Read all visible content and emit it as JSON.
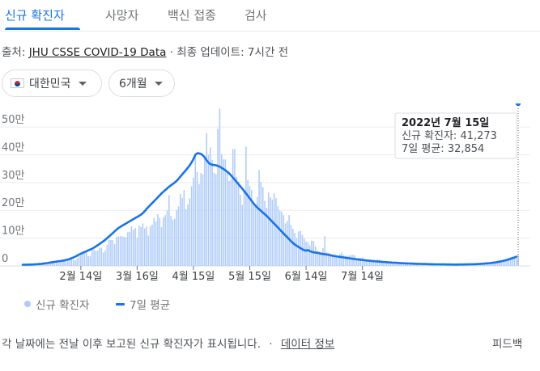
{
  "tabs": [
    {
      "label": "신규 확진자",
      "active": true
    },
    {
      "label": "사망자",
      "active": false
    },
    {
      "label": "백신 접종",
      "active": false
    },
    {
      "label": "검사",
      "active": false
    }
  ],
  "source": {
    "prefix": "출처:",
    "link": "JHU CSSE COVID-19 Data",
    "separator": "·",
    "updated": "최종 업데이트: 7시간 전"
  },
  "filters": {
    "country": "대한민국",
    "period": "6개월"
  },
  "colors": {
    "accent": "#1a73e8",
    "bar": "#aecbfa"
  },
  "chart_data": {
    "type": "bar",
    "title": "",
    "xlabel": "",
    "ylabel": "",
    "ylim": [
      0,
      570000
    ],
    "y_ticks": [
      0,
      100000,
      200000,
      300000,
      400000,
      500000
    ],
    "y_tick_labels": [
      "0",
      "10만",
      "20만",
      "30만",
      "40만",
      "50만"
    ],
    "x_start": "2022-01-14",
    "x_tick_labels": [
      "2월 14일",
      "3월 16일",
      "4월 15일",
      "5월 15일",
      "6월 14일",
      "7월 14일"
    ],
    "x_tick_dates": [
      "2022-02-14",
      "2022-03-16",
      "2022-04-15",
      "2022-05-15",
      "2022-06-14",
      "2022-07-14"
    ],
    "series": [
      {
        "name": "신규 확진자",
        "type": "bar",
        "values": [
          4500,
          4200,
          4600,
          4800,
          5000,
          4100,
          4300,
          5500,
          5900,
          6400,
          7500,
          8000,
          7000,
          6000,
          9000,
          11000,
          13000,
          14500,
          14000,
          11000,
          13500,
          17000,
          19000,
          20000,
          22000,
          27000,
          29000,
          22000,
          20000,
          27000,
          36000,
          38000,
          49000,
          53000,
          48000,
          35000,
          35500,
          57000,
          58000,
          54000,
          55000,
          66000,
          66000,
          48000,
          56000,
          76000,
          94000,
          93000,
          93000,
          78000,
          104000,
          106000,
          107000,
          107000,
          105000,
          103000,
          121000,
          123000,
          143000,
          130000,
          137000,
          102000,
          145000,
          140000,
          153000,
          135000,
          142000,
          109000,
          142000,
          149000,
          172000,
          160000,
          186000,
          173000,
          140000,
          175000,
          183000,
          200000,
          255000,
          180000,
          165000,
          170000,
          201000,
          214000,
          259000,
          245000,
          272000,
          203000,
          221000,
          243000,
          287000,
          318000,
          395000,
          337000,
          294000,
          334000,
          330000,
          387000,
          478000,
          400000,
          426000,
          381000,
          335000,
          330000,
          493000,
          566000,
          402000,
          384000,
          383000,
          337000,
          305000,
          312000,
          420000,
          421000,
          321000,
          304000,
          256000,
          220000,
          268000,
          429000,
          310000,
          287000,
          273000,
          223000,
          216000,
          248000,
          345000,
          302000,
          283000,
          234000,
          209000,
          264000,
          247000,
          239000,
          262000,
          244000,
          215000,
          199000,
          196000,
          183000,
          153000,
          162000,
          183000,
          148000,
          133000,
          119000,
          101000,
          124000,
          126000,
          111000,
          98000,
          88000,
          85000,
          74000,
          91000,
          90000,
          71000,
          55000,
          51000,
          50000,
          64000,
          107000,
          49000,
          47000,
          35000,
          38000,
          32000,
          34000,
          35000,
          42000,
          48000,
          39000,
          37000,
          36000,
          38000,
          39000,
          40000,
          38000,
          27000,
          28000,
          29000,
          31000,
          26000,
          24000,
          23000,
          21000,
          22000,
          22000,
          20000,
          24000,
          23000,
          21000,
          16000,
          15000,
          17000,
          15000,
          13000,
          14000,
          15000,
          14000,
          12000,
          12000,
          12000,
          11000,
          12000,
          11000,
          10000,
          9500,
          9000,
          9500,
          9000,
          8000,
          7800,
          7500,
          7000,
          7000,
          7300,
          7000,
          6500,
          6000,
          6200,
          6500,
          6000,
          5800,
          6000,
          5500,
          5200,
          5000,
          5800,
          5200,
          5000,
          5500,
          5000,
          4800,
          5400,
          5000,
          5200,
          5000,
          5500,
          5600,
          5800,
          6000,
          6500,
          7000,
          6800,
          7000,
          7500,
          8000,
          9000,
          10000,
          11000,
          12000,
          14000,
          17000,
          18000,
          19000,
          20000,
          22000,
          26000,
          30000,
          33000,
          33000,
          36000,
          38000,
          41273
        ]
      },
      {
        "name": "7일 평균",
        "type": "line",
        "values": [
          4400,
          4500,
          4700,
          4800,
          5000,
          5300,
          5600,
          6000,
          6500,
          7000,
          7700,
          8500,
          9300,
          10300,
          11400,
          12600,
          13600,
          14500,
          15500,
          16500,
          17500,
          18600,
          19900,
          21400,
          23100,
          25100,
          27600,
          30200,
          33400,
          37000,
          40600,
          44000,
          47200,
          50000,
          53000,
          56000,
          59000,
          62000,
          66000,
          70000,
          74500,
          79000,
          84000,
          89000,
          94000,
          100000,
          106000,
          112000,
          118000,
          124500,
          130500,
          136000,
          140500,
          144500,
          148500,
          152500,
          156500,
          160500,
          164500,
          168500,
          172500,
          176000,
          180000,
          184000,
          190000,
          197000,
          205000,
          212000,
          219000,
          226000,
          233000,
          240000,
          247000,
          254000,
          261000,
          267000,
          273000,
          279000,
          285000,
          290000,
          295000,
          300000,
          306000,
          313000,
          321000,
          329000,
          337000,
          345000,
          353000,
          362000,
          372000,
          385000,
          400000,
          405000,
          405000,
          403000,
          398000,
          390000,
          380000,
          372000,
          366000,
          364000,
          363000,
          362000,
          360000,
          357000,
          353000,
          349000,
          344000,
          339000,
          333000,
          326000,
          318000,
          310000,
          302000,
          294000,
          286000,
          278000,
          270000,
          261000,
          252000,
          243000,
          234000,
          225000,
          217000,
          210000,
          204000,
          198000,
          192000,
          186000,
          180000,
          173000,
          166000,
          159000,
          152000,
          145000,
          138000,
          131000,
          124000,
          117000,
          110000,
          103000,
          96000,
          89000,
          83000,
          77000,
          72000,
          68000,
          64000,
          60000,
          57000,
          55000,
          57000,
          53000,
          51000,
          49000,
          48000,
          47000,
          46000,
          44000,
          43000,
          42000,
          41000,
          40000,
          38500,
          37000,
          35800,
          34700,
          33500,
          32500,
          31500,
          30500,
          29500,
          28500,
          27500,
          26600,
          25700,
          24800,
          23900,
          23000,
          22200,
          21400,
          20600,
          19900,
          19200,
          18500,
          17800,
          17200,
          16600,
          16000,
          15400,
          14900,
          14400,
          13900,
          13400,
          12900,
          12400,
          12000,
          11600,
          11200,
          10800,
          10400,
          10000,
          9700,
          9400,
          9100,
          8800,
          8500,
          8200,
          7900,
          7700,
          7500,
          7300,
          7100,
          6900,
          6700,
          6500,
          6350,
          6200,
          6050,
          5900,
          5800,
          5700,
          5600,
          5500,
          5400,
          5300,
          5200,
          5100,
          5050,
          5000,
          5000,
          5050,
          5100,
          5200,
          5300,
          5450,
          5600,
          5800,
          6000,
          6250,
          6500,
          6800,
          7100,
          7500,
          7900,
          8400,
          8900,
          9500,
          10200,
          11000,
          11900,
          12900,
          14000,
          15300,
          16700,
          18200,
          19800,
          21600,
          23500,
          25600,
          27900,
          30300,
          32854
        ]
      }
    ],
    "tooltip": {
      "date": "2022년 7월 15일",
      "cases_label": "신규 확진자:",
      "cases_value": "41,273",
      "avg_label": "7일 평균:",
      "avg_value": "32,854"
    },
    "legend": [
      {
        "name": "신규 확진자",
        "marker": "dot"
      },
      {
        "name": "7일 평균",
        "marker": "line"
      }
    ],
    "grid": true,
    "legend_position": "bottom-left"
  },
  "footer": {
    "note": "각 날짜에는 전날 이후 보고된 신규 확진자가 표시됩니다.",
    "separator": "·",
    "data_info": "데이터 정보",
    "feedback": "피드백"
  }
}
